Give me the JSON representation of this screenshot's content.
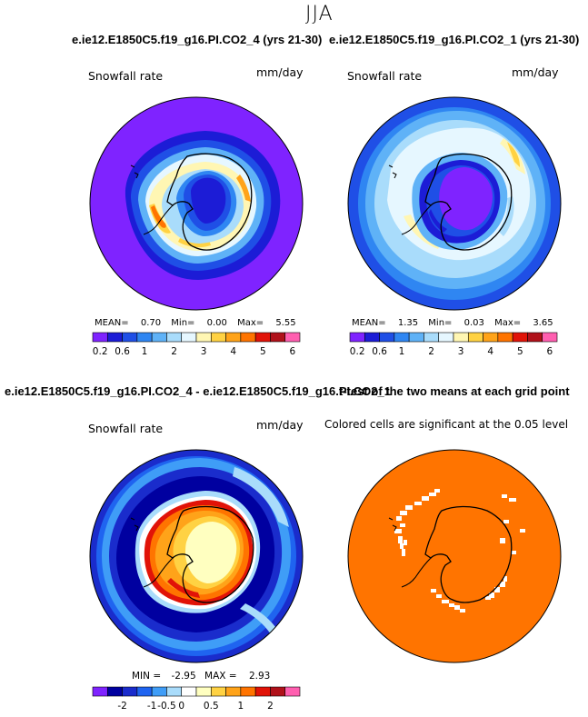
{
  "season": "JJA",
  "panels": {
    "top_left": {
      "title": "e.ie12.E1850C5.f19_g16.PI.CO2_4 (yrs 21-30)",
      "variable": "Snowfall rate",
      "units": "mm/day",
      "stats": {
        "mean_label": "MEAN=",
        "mean": "0.70",
        "min_label": "Min=",
        "min": "0.00",
        "max_label": "Max=",
        "max": "5.55"
      }
    },
    "top_right": {
      "title": "e.ie12.E1850C5.f19_g16.PI.CO2_1 (yrs 21-30)",
      "variable": "Snowfall rate",
      "units": "mm/day",
      "stats": {
        "mean_label": "MEAN=",
        "mean": "1.35",
        "min_label": "Min=",
        "min": "0.03",
        "max_label": "Max=",
        "max": "3.65"
      }
    },
    "bottom_left": {
      "title": "e.ie12.E1850C5.f19_g16.PI.CO2_4 - e.ie12.E1850C5.f19_g16.PI.CO2_1",
      "variable": "Snowfall rate",
      "units": "mm/day",
      "stats": {
        "min_label": "MIN =",
        "min": "-2.95",
        "max_label": "MAX =",
        "max": "2.93"
      }
    },
    "bottom_right": {
      "title": "t-test of the two means at each grid point",
      "caption": "Colored cells are significant at the 0.05 level"
    }
  },
  "colorbars": {
    "abs": {
      "colors": [
        "#7f23ff",
        "#1c1cd6",
        "#1f4fe6",
        "#2f86f2",
        "#5fb2f7",
        "#a9dcfb",
        "#e6f7ff",
        "#fff6b3",
        "#ffd243",
        "#ffa319",
        "#ff7400",
        "#e11308",
        "#b0111a",
        "#ff5fb0"
      ],
      "labels": [
        "0.2",
        "0.6",
        "1",
        "2",
        "3",
        "4",
        "5",
        "6"
      ]
    },
    "diff": {
      "colors": [
        "#7f23ff",
        "#0000a0",
        "#1a2ccc",
        "#1f64f0",
        "#3f9df7",
        "#a9dcfb",
        "#ffffff",
        "#ffffc0",
        "#ffd243",
        "#ffa319",
        "#ff7400",
        "#e11308",
        "#b0111a",
        "#ff5fb0"
      ],
      "labels": [
        "-2",
        "-1",
        "-0.5",
        "0",
        "0.5",
        "1",
        "2"
      ]
    }
  },
  "map_colors": {
    "ocean_low": "#7f23ff",
    "significance": "#ff7400",
    "coast": "#000000"
  }
}
